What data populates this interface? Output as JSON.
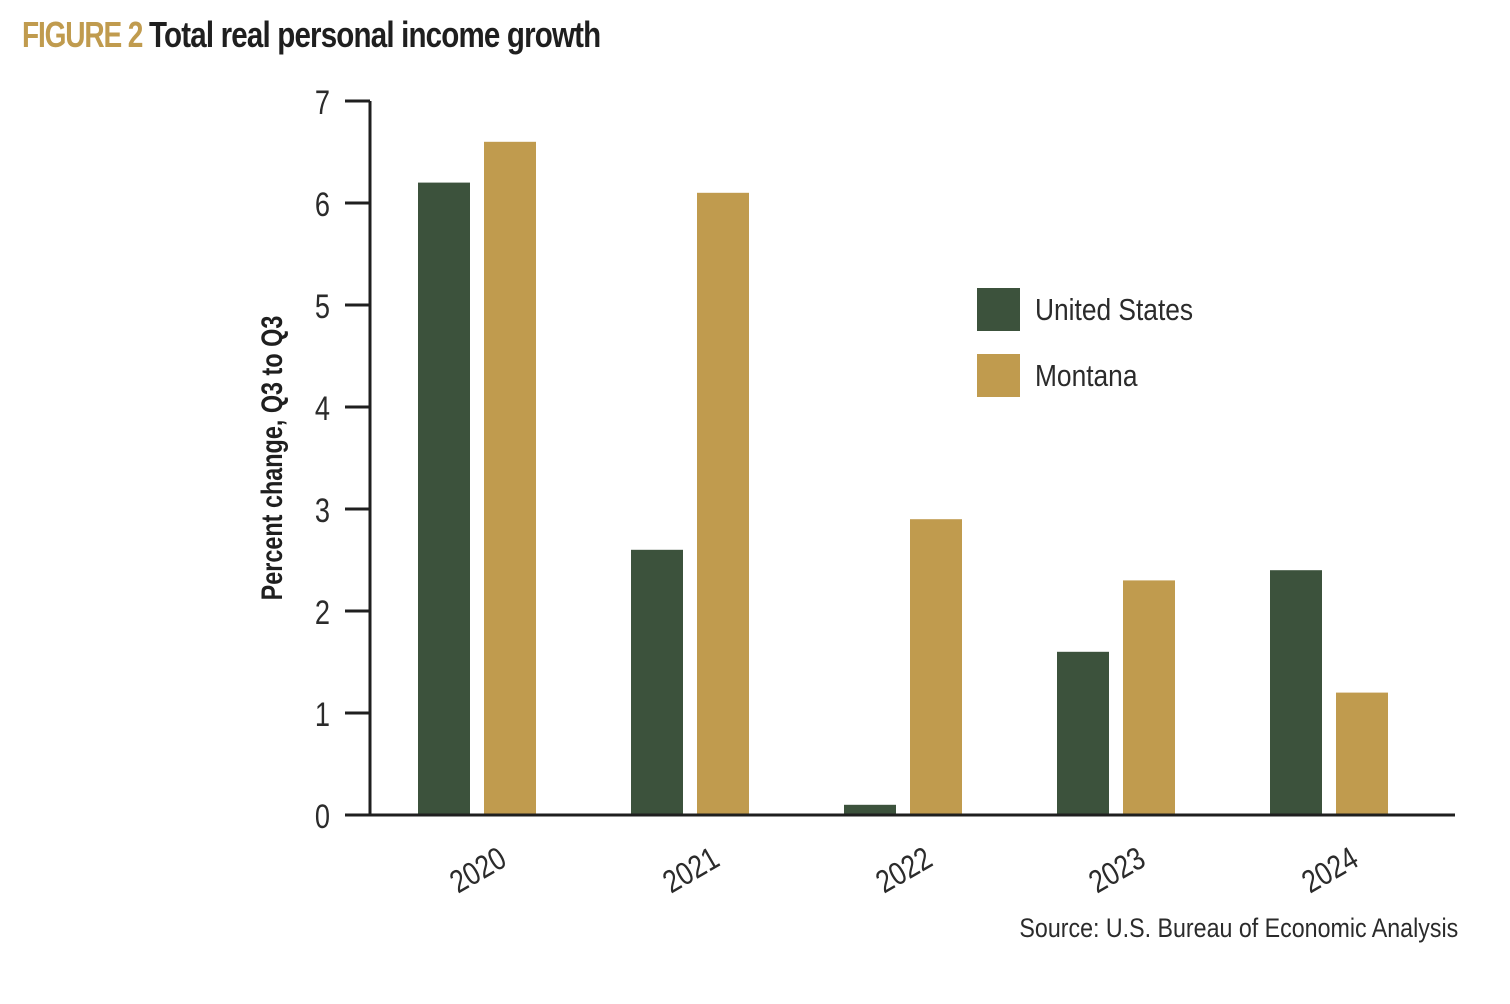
{
  "figure": {
    "label": "FIGURE 2",
    "title": "Total real personal income growth",
    "source": "Source: U.S. Bureau of Economic Analysis"
  },
  "colors": {
    "us": "#3c523c",
    "montana": "#c09b4e",
    "axis": "#1f1f1f"
  },
  "chart_data": {
    "type": "bar",
    "title": "Total real personal income growth",
    "xlabel": "",
    "ylabel": "Percent change, Q3 to Q3",
    "ylim": [
      0,
      7
    ],
    "yticks": [
      0,
      1,
      2,
      3,
      4,
      5,
      6,
      7
    ],
    "grid": false,
    "legend_position": "right",
    "categories": [
      "2020",
      "2021",
      "2022",
      "2023",
      "2024"
    ],
    "series": [
      {
        "name": "United States",
        "values": [
          6.2,
          2.6,
          0.1,
          1.6,
          2.4
        ]
      },
      {
        "name": "Montana",
        "values": [
          6.6,
          6.1,
          2.9,
          2.3,
          1.2
        ]
      }
    ]
  }
}
